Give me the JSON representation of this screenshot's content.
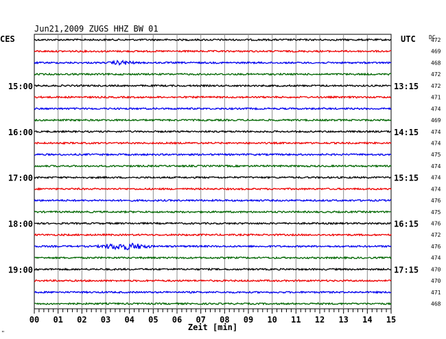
{
  "chart_data": {
    "type": "line",
    "title": "Jun21,2009   ZUGS HHZ BW 01",
    "left_axis_title": "CES",
    "right_axis_title": "UTC",
    "dc_header": "DC",
    "xlabel": "Zeit [min]",
    "xlim": [
      0,
      15
    ],
    "x_ticks": [
      "00",
      "01",
      "02",
      "03",
      "04",
      "05",
      "06",
      "07",
      "08",
      "09",
      "10",
      "11",
      "12",
      "13",
      "14",
      "15"
    ],
    "trace_colors": [
      "#000000",
      "#ee0000",
      "#0000ee",
      "#006600"
    ],
    "traces": [
      {
        "left": "",
        "right": "",
        "dc": "472",
        "color": "#000000",
        "events": []
      },
      {
        "left": "",
        "right": "",
        "dc": "469",
        "color": "#ee0000",
        "events": []
      },
      {
        "left": "",
        "right": "",
        "dc": "468",
        "color": "#0000ee",
        "events": [
          {
            "start": 3.1,
            "end": 4.3,
            "amp": 2.2
          }
        ]
      },
      {
        "left": "",
        "right": "",
        "dc": "472",
        "color": "#006600",
        "events": []
      },
      {
        "left": "15:00",
        "right": "13:15",
        "dc": "472",
        "color": "#000000",
        "events": []
      },
      {
        "left": "",
        "right": "",
        "dc": "471",
        "color": "#ee0000",
        "events": []
      },
      {
        "left": "",
        "right": "",
        "dc": "474",
        "color": "#0000ee",
        "events": []
      },
      {
        "left": "",
        "right": "",
        "dc": "469",
        "color": "#006600",
        "events": []
      },
      {
        "left": "16:00",
        "right": "14:15",
        "dc": "474",
        "color": "#000000",
        "events": []
      },
      {
        "left": "",
        "right": "",
        "dc": "474",
        "color": "#ee0000",
        "events": []
      },
      {
        "left": "",
        "right": "",
        "dc": "475",
        "color": "#0000ee",
        "events": []
      },
      {
        "left": "",
        "right": "",
        "dc": "474",
        "color": "#006600",
        "events": []
      },
      {
        "left": "17:00",
        "right": "15:15",
        "dc": "474",
        "color": "#000000",
        "events": []
      },
      {
        "left": "",
        "right": "",
        "dc": "474",
        "color": "#ee0000",
        "events": []
      },
      {
        "left": "",
        "right": "",
        "dc": "476",
        "color": "#0000ee",
        "events": []
      },
      {
        "left": "",
        "right": "",
        "dc": "475",
        "color": "#006600",
        "events": []
      },
      {
        "left": "18:00",
        "right": "16:15",
        "dc": "476",
        "color": "#000000",
        "events": []
      },
      {
        "left": "",
        "right": "",
        "dc": "472",
        "color": "#ee0000",
        "events": []
      },
      {
        "left": "",
        "right": "",
        "dc": "476",
        "color": "#0000ee",
        "events": [
          {
            "start": 2.6,
            "end": 5.0,
            "amp": 4.0
          }
        ]
      },
      {
        "left": "",
        "right": "",
        "dc": "474",
        "color": "#006600",
        "events": []
      },
      {
        "left": "19:00",
        "right": "17:15",
        "dc": "470",
        "color": "#000000",
        "events": []
      },
      {
        "left": "",
        "right": "",
        "dc": "470",
        "color": "#ee0000",
        "events": []
      },
      {
        "left": "",
        "right": "",
        "dc": "471",
        "color": "#0000ee",
        "events": []
      },
      {
        "left": "",
        "right": "",
        "dc": "468",
        "color": "#006600",
        "events": []
      }
    ],
    "grid": true,
    "corner_mark": "\""
  }
}
